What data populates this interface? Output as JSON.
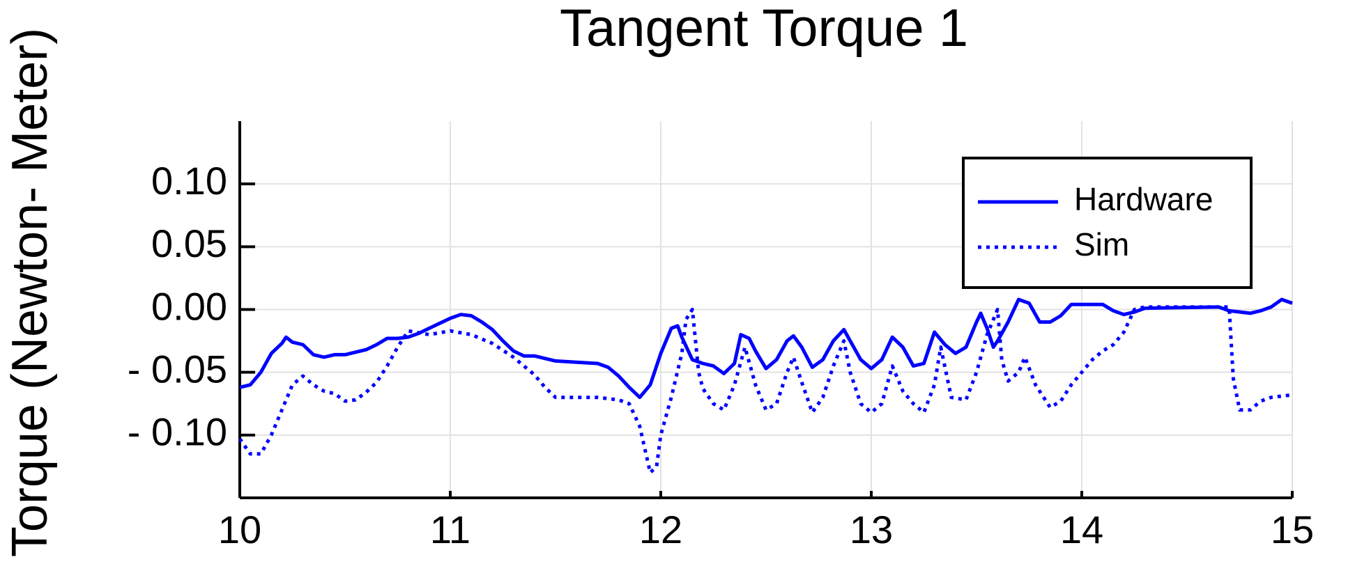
{
  "chart_data": {
    "type": "line",
    "title": "Tangent Torque 1",
    "ylabel": "Torque (Newton- Meter)",
    "xlim": [
      10,
      15
    ],
    "xticks": [
      10,
      11,
      12,
      13,
      14,
      15
    ],
    "ylim": [
      -0.15,
      0.15
    ],
    "yticks": [
      {
        "value": -0.1,
        "label": "- 0.10"
      },
      {
        "value": -0.05,
        "label": "- 0.05"
      },
      {
        "value": 0,
        "label": "0.00"
      },
      {
        "value": 0.05,
        "label": "0.05"
      },
      {
        "value": 0.1,
        "label": "0.10"
      }
    ],
    "grid": true,
    "legend": "top right",
    "series": [
      {
        "name": "Hardware",
        "color": "#0000ff",
        "linestyle": "solid",
        "x": [
          10.0,
          10.05,
          10.1,
          10.15,
          10.2,
          10.22,
          10.25,
          10.3,
          10.35,
          10.4,
          10.45,
          10.5,
          10.55,
          10.6,
          10.65,
          10.7,
          10.75,
          10.8,
          10.85,
          10.9,
          10.95,
          11.0,
          11.05,
          11.1,
          11.15,
          11.2,
          11.25,
          11.3,
          11.35,
          11.4,
          11.45,
          11.5,
          11.6,
          11.7,
          11.75,
          11.8,
          11.85,
          11.9,
          11.95,
          12.0,
          12.05,
          12.08,
          12.1,
          12.15,
          12.2,
          12.25,
          12.3,
          12.35,
          12.38,
          12.42,
          12.45,
          12.5,
          12.55,
          12.6,
          12.63,
          12.67,
          12.72,
          12.77,
          12.82,
          12.87,
          12.9,
          12.95,
          13.0,
          13.05,
          13.1,
          13.15,
          13.2,
          13.25,
          13.3,
          13.35,
          13.4,
          13.45,
          13.5,
          13.52,
          13.55,
          13.58,
          13.6,
          13.65,
          13.7,
          13.75,
          13.8,
          13.85,
          13.9,
          13.95,
          14.0,
          14.05,
          14.1,
          14.15,
          14.2,
          14.25,
          14.3,
          14.65,
          14.7,
          14.8,
          14.85,
          14.9,
          14.95,
          15.0
        ],
        "values": [
          -0.062,
          -0.06,
          -0.05,
          -0.035,
          -0.027,
          -0.022,
          -0.026,
          -0.028,
          -0.036,
          -0.038,
          -0.036,
          -0.036,
          -0.034,
          -0.032,
          -0.028,
          -0.023,
          -0.023,
          -0.022,
          -0.019,
          -0.015,
          -0.011,
          -0.007,
          -0.004,
          -0.005,
          -0.01,
          -0.016,
          -0.025,
          -0.033,
          -0.037,
          -0.037,
          -0.039,
          -0.041,
          -0.042,
          -0.043,
          -0.046,
          -0.053,
          -0.062,
          -0.07,
          -0.06,
          -0.035,
          -0.015,
          -0.013,
          -0.022,
          -0.04,
          -0.043,
          -0.045,
          -0.051,
          -0.043,
          -0.02,
          -0.023,
          -0.033,
          -0.047,
          -0.04,
          -0.025,
          -0.021,
          -0.03,
          -0.046,
          -0.04,
          -0.025,
          -0.016,
          -0.025,
          -0.04,
          -0.047,
          -0.04,
          -0.022,
          -0.03,
          -0.045,
          -0.043,
          -0.018,
          -0.028,
          -0.035,
          -0.03,
          -0.01,
          -0.003,
          -0.015,
          -0.03,
          -0.025,
          -0.01,
          0.008,
          0.005,
          -0.01,
          -0.01,
          -0.005,
          0.004,
          0.004,
          0.004,
          0.004,
          -0.001,
          -0.004,
          -0.002,
          0.001,
          0.002,
          -0.001,
          -0.003,
          -0.001,
          0.002,
          0.008,
          0.005
        ]
      },
      {
        "name": "Sim",
        "color": "#0000ff",
        "linestyle": "dotted",
        "x": [
          10.0,
          10.05,
          10.1,
          10.15,
          10.2,
          10.25,
          10.3,
          10.35,
          10.4,
          10.45,
          10.5,
          10.55,
          10.6,
          10.65,
          10.7,
          10.75,
          10.8,
          10.9,
          11.0,
          11.1,
          11.2,
          11.3,
          11.4,
          11.45,
          11.5,
          11.6,
          11.7,
          11.8,
          11.85,
          11.9,
          11.95,
          11.98,
          12.0,
          12.05,
          12.1,
          12.12,
          12.15,
          12.18,
          12.2,
          12.25,
          12.3,
          12.35,
          12.4,
          12.45,
          12.5,
          12.55,
          12.6,
          12.63,
          12.67,
          12.72,
          12.77,
          12.82,
          12.87,
          12.9,
          12.95,
          13.0,
          13.05,
          13.1,
          13.15,
          13.2,
          13.25,
          13.3,
          13.33,
          13.38,
          13.45,
          13.5,
          13.55,
          13.6,
          13.62,
          13.65,
          13.7,
          13.73,
          13.78,
          13.85,
          13.9,
          13.95,
          14.0,
          14.05,
          14.1,
          14.15,
          14.2,
          14.25,
          14.3,
          14.7,
          14.72,
          14.75,
          14.8,
          14.85,
          14.9,
          15.0
        ],
        "values": [
          -0.103,
          -0.115,
          -0.115,
          -0.1,
          -0.08,
          -0.06,
          -0.053,
          -0.06,
          -0.065,
          -0.067,
          -0.073,
          -0.072,
          -0.066,
          -0.058,
          -0.045,
          -0.03,
          -0.017,
          -0.02,
          -0.017,
          -0.02,
          -0.027,
          -0.038,
          -0.052,
          -0.062,
          -0.07,
          -0.07,
          -0.07,
          -0.072,
          -0.075,
          -0.093,
          -0.13,
          -0.125,
          -0.1,
          -0.07,
          -0.035,
          -0.008,
          0.0,
          -0.05,
          -0.063,
          -0.075,
          -0.08,
          -0.06,
          -0.03,
          -0.06,
          -0.08,
          -0.075,
          -0.05,
          -0.038,
          -0.058,
          -0.082,
          -0.07,
          -0.045,
          -0.025,
          -0.05,
          -0.075,
          -0.082,
          -0.075,
          -0.045,
          -0.065,
          -0.075,
          -0.082,
          -0.06,
          -0.03,
          -0.07,
          -0.072,
          -0.05,
          -0.02,
          0.0,
          -0.04,
          -0.057,
          -0.05,
          -0.038,
          -0.06,
          -0.078,
          -0.073,
          -0.06,
          -0.05,
          -0.04,
          -0.033,
          -0.028,
          -0.018,
          0.0,
          0.002,
          0.002,
          -0.055,
          -0.08,
          -0.08,
          -0.073,
          -0.07,
          -0.068
        ]
      }
    ]
  }
}
